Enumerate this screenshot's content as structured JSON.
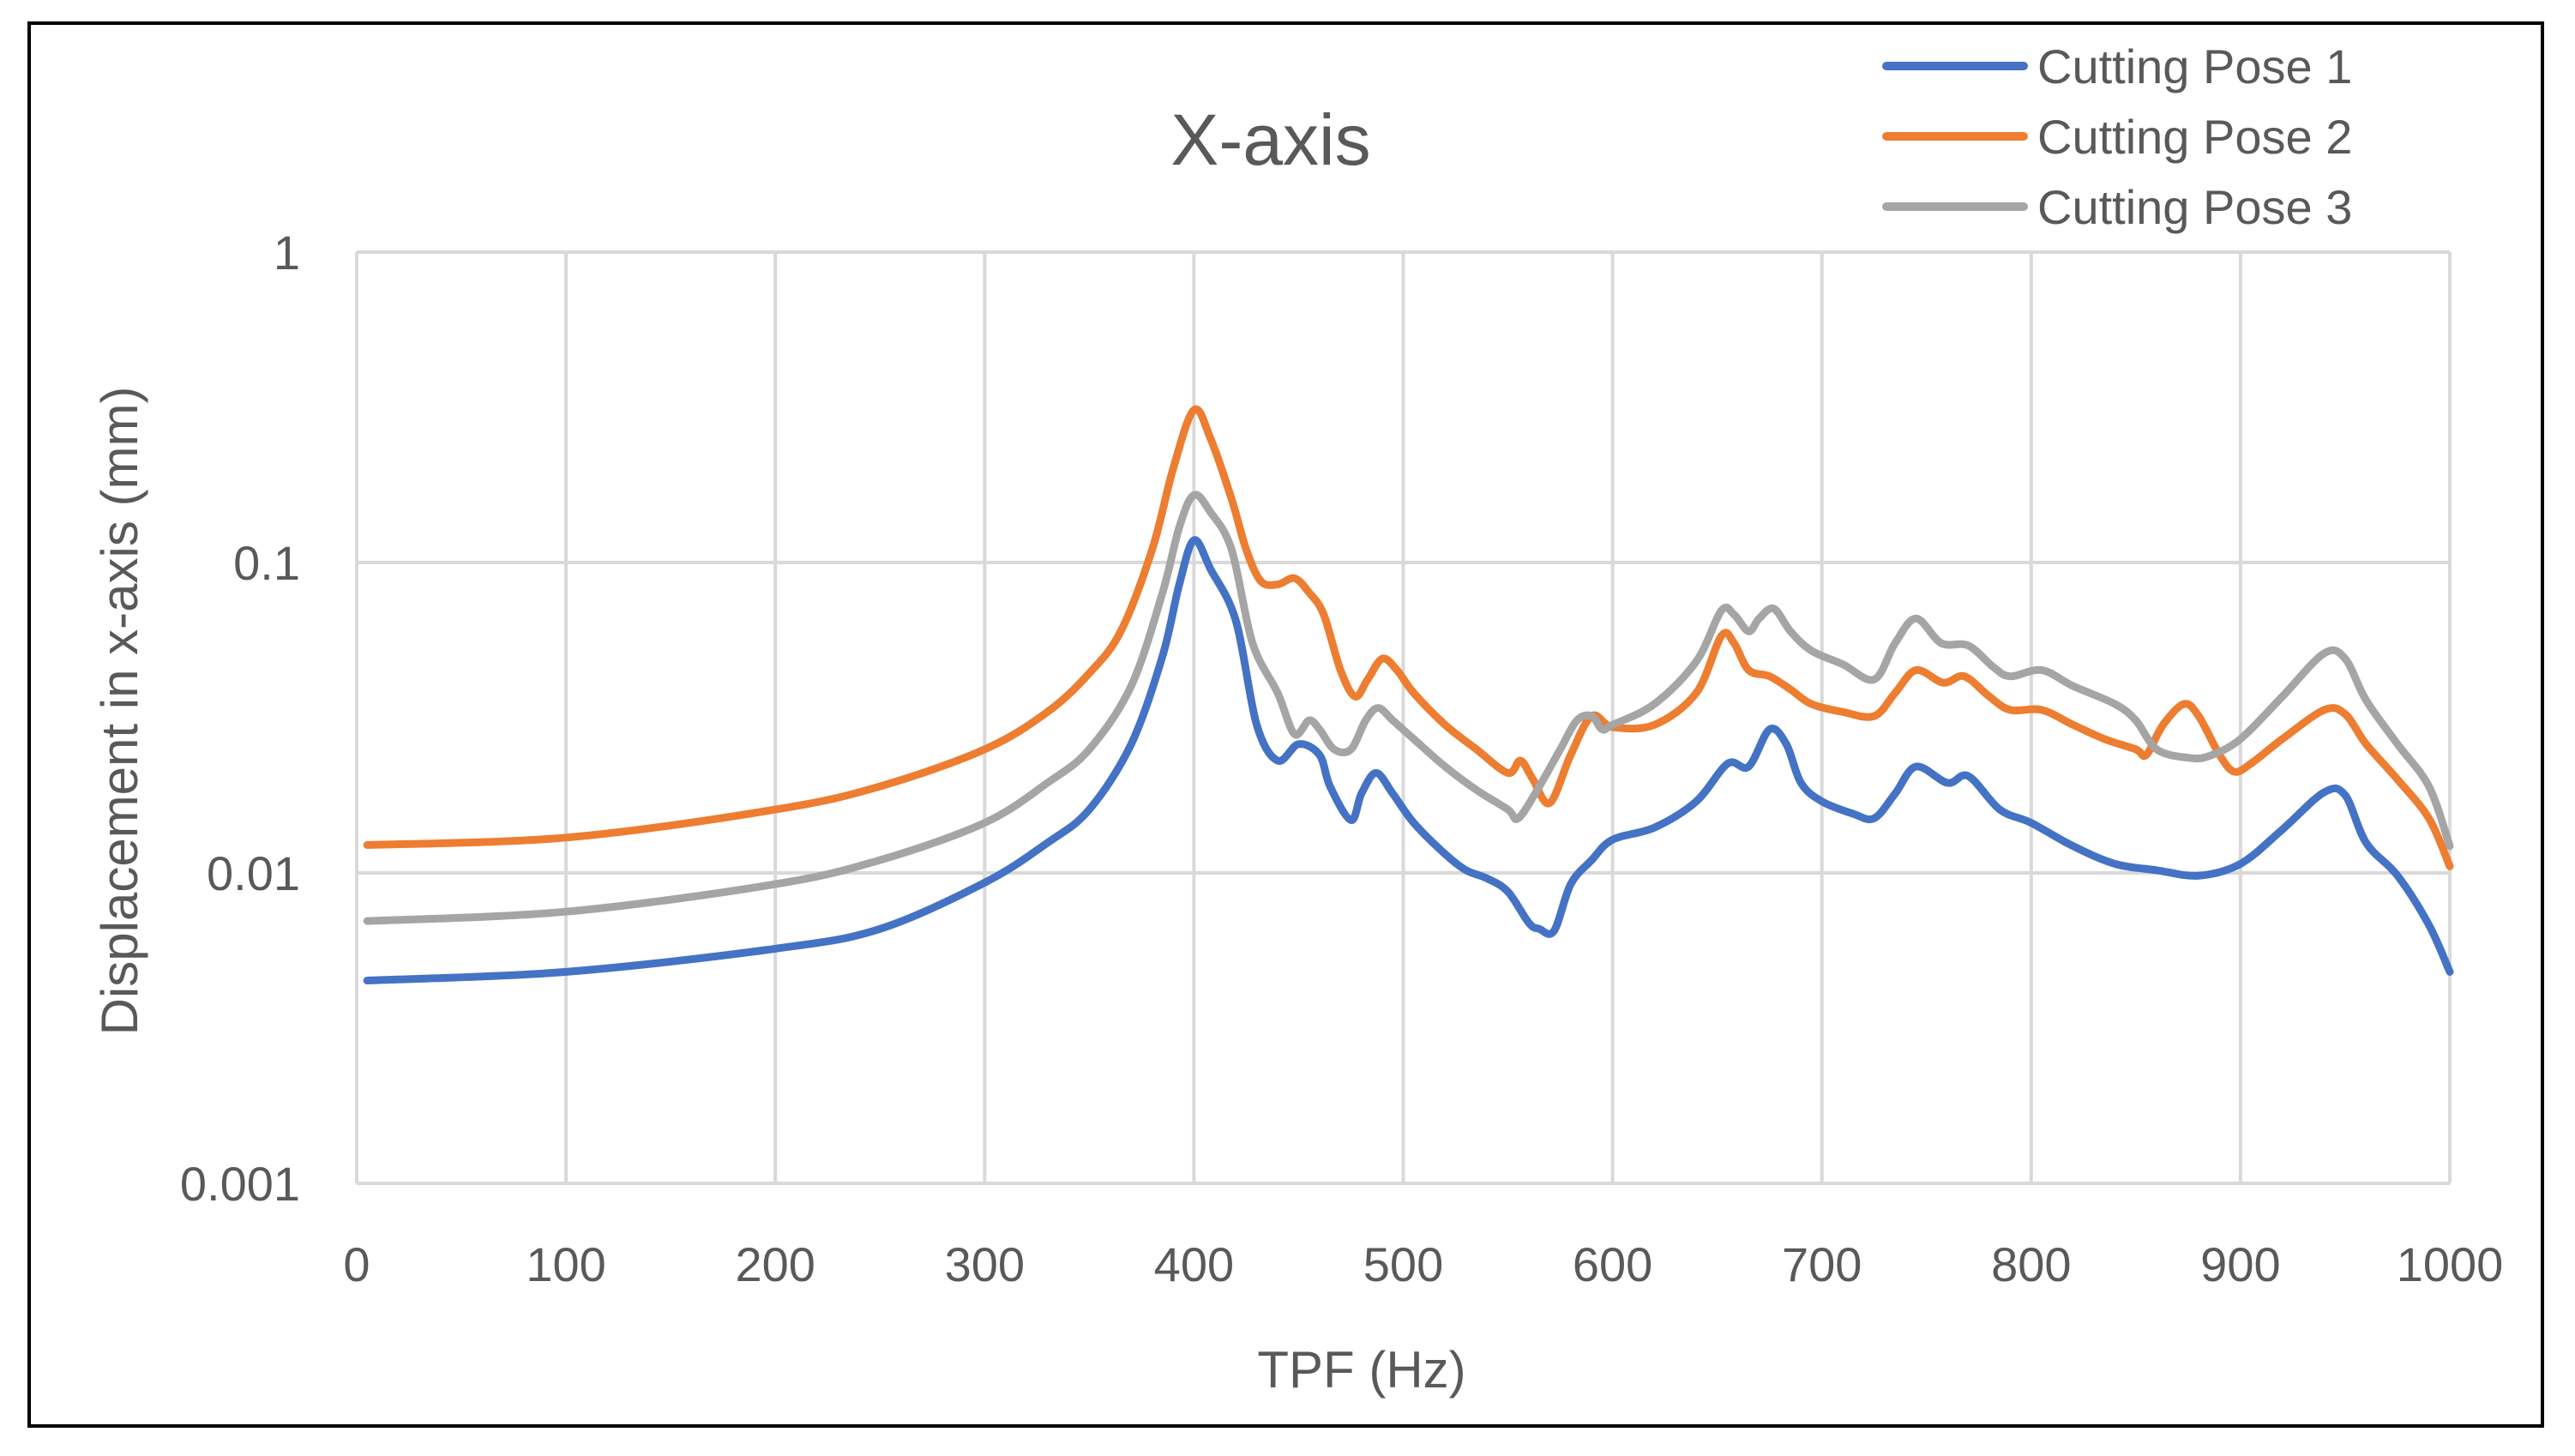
{
  "chart_data": {
    "type": "line",
    "title": "X-axis",
    "xlabel": "TPF (Hz)",
    "ylabel": "Displacement in x-axis (mm)",
    "xlim": [
      0,
      1000
    ],
    "ylim": [
      0.001,
      1
    ],
    "yscale": "log",
    "grid": true,
    "legend_position": "top-right",
    "x_ticks": [
      "0",
      "100",
      "200",
      "300",
      "400",
      "500",
      "600",
      "700",
      "800",
      "900",
      "1000"
    ],
    "y_ticks": [
      "1",
      "0.1",
      "0.01",
      "0.001"
    ],
    "series": [
      {
        "name": "Cutting Pose 1",
        "color": "#4472C4",
        "points": [
          [
            5,
            0.0045
          ],
          [
            100,
            0.0048
          ],
          [
            200,
            0.0057
          ],
          [
            250,
            0.0066
          ],
          [
            300,
            0.0093
          ],
          [
            330,
            0.0125
          ],
          [
            350,
            0.016
          ],
          [
            370,
            0.026
          ],
          [
            385,
            0.05
          ],
          [
            393,
            0.085
          ],
          [
            400,
            0.118
          ],
          [
            408,
            0.095
          ],
          [
            420,
            0.065
          ],
          [
            430,
            0.03
          ],
          [
            440,
            0.023
          ],
          [
            450,
            0.026
          ],
          [
            460,
            0.024
          ],
          [
            465,
            0.019
          ],
          [
            475,
            0.0148
          ],
          [
            480,
            0.018
          ],
          [
            487,
            0.021
          ],
          [
            495,
            0.018
          ],
          [
            505,
            0.0145
          ],
          [
            520,
            0.0115
          ],
          [
            530,
            0.0102
          ],
          [
            540,
            0.0096
          ],
          [
            550,
            0.0087
          ],
          [
            560,
            0.0069
          ],
          [
            565,
            0.0066
          ],
          [
            572,
            0.0065
          ],
          [
            580,
            0.0092
          ],
          [
            590,
            0.011
          ],
          [
            600,
            0.0128
          ],
          [
            620,
            0.014
          ],
          [
            640,
            0.017
          ],
          [
            655,
            0.0225
          ],
          [
            665,
            0.022
          ],
          [
            675,
            0.029
          ],
          [
            683,
            0.026
          ],
          [
            690,
            0.0195
          ],
          [
            700,
            0.017
          ],
          [
            715,
            0.0155
          ],
          [
            725,
            0.015
          ],
          [
            735,
            0.018
          ],
          [
            745,
            0.022
          ],
          [
            760,
            0.0195
          ],
          [
            770,
            0.0205
          ],
          [
            785,
            0.016
          ],
          [
            800,
            0.0145
          ],
          [
            820,
            0.0122
          ],
          [
            840,
            0.0107
          ],
          [
            860,
            0.0102
          ],
          [
            880,
            0.0098
          ],
          [
            900,
            0.0107
          ],
          [
            920,
            0.0138
          ],
          [
            940,
            0.0182
          ],
          [
            950,
            0.0178
          ],
          [
            960,
            0.0125
          ],
          [
            975,
            0.0098
          ],
          [
            990,
            0.0068
          ],
          [
            1000,
            0.0048
          ]
        ]
      },
      {
        "name": "Cutting Pose 2",
        "color": "#ED7D31",
        "points": [
          [
            5,
            0.0123
          ],
          [
            100,
            0.013
          ],
          [
            200,
            0.016
          ],
          [
            250,
            0.019
          ],
          [
            300,
            0.025
          ],
          [
            330,
            0.033
          ],
          [
            350,
            0.044
          ],
          [
            365,
            0.06
          ],
          [
            380,
            0.11
          ],
          [
            390,
            0.2
          ],
          [
            400,
            0.31
          ],
          [
            408,
            0.25
          ],
          [
            418,
            0.16
          ],
          [
            425,
            0.11
          ],
          [
            432,
            0.087
          ],
          [
            440,
            0.085
          ],
          [
            448,
            0.089
          ],
          [
            455,
            0.08
          ],
          [
            462,
            0.068
          ],
          [
            470,
            0.045
          ],
          [
            477,
            0.037
          ],
          [
            483,
            0.042
          ],
          [
            490,
            0.049
          ],
          [
            497,
            0.045
          ],
          [
            505,
            0.038
          ],
          [
            520,
            0.03
          ],
          [
            535,
            0.025
          ],
          [
            550,
            0.021
          ],
          [
            556,
            0.023
          ],
          [
            562,
            0.02
          ],
          [
            570,
            0.0168
          ],
          [
            580,
            0.024
          ],
          [
            590,
            0.032
          ],
          [
            600,
            0.0295
          ],
          [
            620,
            0.03
          ],
          [
            640,
            0.038
          ],
          [
            652,
            0.058
          ],
          [
            658,
            0.055
          ],
          [
            665,
            0.045
          ],
          [
            675,
            0.043
          ],
          [
            685,
            0.039
          ],
          [
            695,
            0.035
          ],
          [
            710,
            0.033
          ],
          [
            725,
            0.032
          ],
          [
            735,
            0.038
          ],
          [
            745,
            0.045
          ],
          [
            758,
            0.041
          ],
          [
            768,
            0.043
          ],
          [
            780,
            0.037
          ],
          [
            790,
            0.0335
          ],
          [
            805,
            0.0335
          ],
          [
            820,
            0.03
          ],
          [
            835,
            0.027
          ],
          [
            850,
            0.025
          ],
          [
            855,
            0.024
          ],
          [
            863,
            0.03
          ],
          [
            873,
            0.035
          ],
          [
            880,
            0.032
          ],
          [
            890,
            0.024
          ],
          [
            897,
            0.0212
          ],
          [
            905,
            0.0225
          ],
          [
            920,
            0.027
          ],
          [
            940,
            0.0335
          ],
          [
            950,
            0.0325
          ],
          [
            960,
            0.026
          ],
          [
            975,
            0.02
          ],
          [
            990,
            0.015
          ],
          [
            1000,
            0.0105
          ]
        ]
      },
      {
        "name": "Cutting Pose 3",
        "color": "#A5A5A5",
        "points": [
          [
            5,
            0.007
          ],
          [
            100,
            0.0075
          ],
          [
            200,
            0.0092
          ],
          [
            250,
            0.011
          ],
          [
            300,
            0.0145
          ],
          [
            330,
            0.0195
          ],
          [
            350,
            0.025
          ],
          [
            370,
            0.04
          ],
          [
            385,
            0.08
          ],
          [
            393,
            0.13
          ],
          [
            400,
            0.165
          ],
          [
            408,
            0.145
          ],
          [
            418,
            0.11
          ],
          [
            428,
            0.055
          ],
          [
            440,
            0.038
          ],
          [
            448,
            0.028
          ],
          [
            455,
            0.031
          ],
          [
            460,
            0.029
          ],
          [
            467,
            0.025
          ],
          [
            475,
            0.025
          ],
          [
            482,
            0.031
          ],
          [
            488,
            0.034
          ],
          [
            495,
            0.031
          ],
          [
            505,
            0.027
          ],
          [
            520,
            0.022
          ],
          [
            535,
            0.0185
          ],
          [
            550,
            0.016
          ],
          [
            555,
            0.015
          ],
          [
            565,
            0.019
          ],
          [
            575,
            0.025
          ],
          [
            583,
            0.031
          ],
          [
            590,
            0.032
          ],
          [
            595,
            0.029
          ],
          [
            600,
            0.03
          ],
          [
            620,
            0.035
          ],
          [
            640,
            0.048
          ],
          [
            652,
            0.07
          ],
          [
            658,
            0.068
          ],
          [
            665,
            0.06
          ],
          [
            670,
            0.066
          ],
          [
            677,
            0.071
          ],
          [
            685,
            0.06
          ],
          [
            695,
            0.052
          ],
          [
            710,
            0.047
          ],
          [
            725,
            0.042
          ],
          [
            735,
            0.055
          ],
          [
            745,
            0.066
          ],
          [
            757,
            0.055
          ],
          [
            770,
            0.054
          ],
          [
            782,
            0.046
          ],
          [
            790,
            0.043
          ],
          [
            805,
            0.045
          ],
          [
            820,
            0.04
          ],
          [
            840,
            0.035
          ],
          [
            850,
            0.031
          ],
          [
            860,
            0.025
          ],
          [
            875,
            0.0235
          ],
          [
            885,
            0.0238
          ],
          [
            900,
            0.027
          ],
          [
            920,
            0.037
          ],
          [
            940,
            0.051
          ],
          [
            950,
            0.049
          ],
          [
            960,
            0.036
          ],
          [
            975,
            0.026
          ],
          [
            990,
            0.019
          ],
          [
            1000,
            0.0122
          ]
        ]
      }
    ]
  }
}
